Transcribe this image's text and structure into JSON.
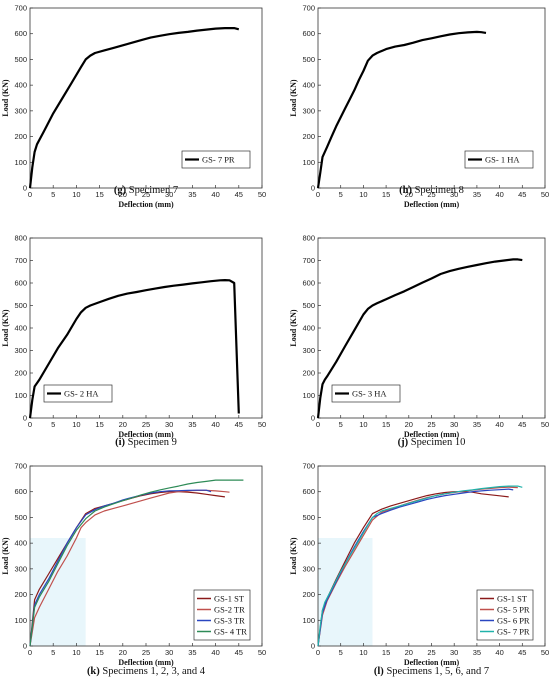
{
  "chart_data": [
    {
      "type": "line",
      "caption_letter": "(g)",
      "caption_text": " Specimen 7",
      "xlabel": "Deflection (mm)",
      "ylabel": "Load (KN)",
      "xlim": [
        0,
        50
      ],
      "ylim": [
        0,
        700
      ],
      "xticks": [
        0,
        5,
        10,
        15,
        20,
        25,
        30,
        35,
        40,
        45,
        50
      ],
      "yticks": [
        0,
        100,
        200,
        300,
        400,
        500,
        600,
        700
      ],
      "legend_position": "lower-right",
      "grid": false,
      "series": [
        {
          "name": "GS- 7 PR",
          "color": "#000000",
          "x": [
            0,
            0.5,
            1,
            1.5,
            3,
            5,
            7,
            9,
            11,
            12,
            13,
            14,
            16,
            18,
            20,
            22,
            24,
            26,
            28,
            30,
            32,
            34,
            36,
            38,
            40,
            42,
            44,
            45
          ],
          "y": [
            0,
            80,
            140,
            170,
            220,
            290,
            350,
            410,
            470,
            500,
            515,
            525,
            535,
            545,
            555,
            565,
            575,
            585,
            592,
            598,
            603,
            607,
            612,
            616,
            620,
            622,
            622,
            617
          ]
        }
      ]
    },
    {
      "type": "line",
      "caption_letter": "(h)",
      "caption_text": " Specimen 8",
      "xlabel": "Deflection (mm)",
      "ylabel": "Load (KN)",
      "xlim": [
        0,
        50
      ],
      "ylim": [
        0,
        700
      ],
      "xticks": [
        0,
        5,
        10,
        15,
        20,
        25,
        30,
        35,
        40,
        45,
        50
      ],
      "yticks": [
        0,
        100,
        200,
        300,
        400,
        500,
        600,
        700
      ],
      "legend_position": "lower-right",
      "grid": false,
      "series": [
        {
          "name": "GS- 1 HA",
          "color": "#000000",
          "x": [
            0,
            0.5,
            1,
            2,
            3,
            4,
            5,
            6,
            7,
            8,
            9,
            10,
            11,
            12,
            13,
            15,
            17,
            19,
            21,
            23,
            25,
            27,
            29,
            31,
            33,
            35,
            36,
            37
          ],
          "y": [
            0,
            60,
            120,
            160,
            200,
            240,
            275,
            310,
            345,
            380,
            420,
            455,
            495,
            515,
            525,
            540,
            550,
            556,
            565,
            575,
            582,
            590,
            597,
            602,
            605,
            607,
            606,
            603
          ]
        }
      ]
    },
    {
      "type": "line",
      "caption_letter": "(i)",
      "caption_text": " Specimen 9",
      "xlabel": "Deflection (mm)",
      "ylabel": "Load (KN)",
      "xlim": [
        0,
        50
      ],
      "ylim": [
        0,
        800
      ],
      "xticks": [
        0,
        5,
        10,
        15,
        20,
        25,
        30,
        35,
        40,
        45,
        50
      ],
      "yticks": [
        0,
        100,
        200,
        300,
        400,
        500,
        600,
        700,
        800
      ],
      "legend_position": "lower-left",
      "grid": false,
      "series": [
        {
          "name": "GS- 2 HA",
          "color": "#000000",
          "x": [
            0,
            0.5,
            1,
            2,
            4,
            6,
            8,
            10,
            11,
            12,
            13,
            15,
            17,
            19,
            21,
            23,
            25,
            27,
            29,
            31,
            33,
            35,
            37,
            39,
            41,
            42,
            43,
            44,
            45
          ],
          "y": [
            0,
            80,
            140,
            170,
            240,
            310,
            370,
            440,
            470,
            490,
            500,
            515,
            530,
            543,
            553,
            560,
            568,
            575,
            582,
            588,
            593,
            598,
            603,
            608,
            612,
            613,
            612,
            600,
            20
          ]
        }
      ]
    },
    {
      "type": "line",
      "caption_letter": "(j)",
      "caption_text": " Specimen 10",
      "xlabel": "Deflection (mm)",
      "ylabel": "Load (KN)",
      "xlim": [
        0,
        50
      ],
      "ylim": [
        0,
        800
      ],
      "xticks": [
        0,
        5,
        10,
        15,
        20,
        25,
        30,
        35,
        40,
        45,
        50
      ],
      "yticks": [
        0,
        100,
        200,
        300,
        400,
        500,
        600,
        700,
        800
      ],
      "legend_position": "lower-left",
      "grid": false,
      "series": [
        {
          "name": "GS- 3 HA",
          "color": "#000000",
          "x": [
            0,
            0.5,
            1,
            1.5,
            2,
            4,
            6,
            8,
            10,
            11,
            12,
            13,
            15,
            17,
            19,
            21,
            23,
            25,
            27,
            29,
            31,
            33,
            35,
            37,
            39,
            41,
            43,
            44,
            45
          ],
          "y": [
            0,
            90,
            150,
            170,
            185,
            250,
            320,
            390,
            460,
            485,
            500,
            510,
            528,
            546,
            563,
            582,
            602,
            620,
            640,
            653,
            663,
            672,
            680,
            688,
            695,
            700,
            705,
            705,
            702
          ]
        }
      ]
    },
    {
      "type": "line",
      "caption_letter": "(k)",
      "caption_text": " Specimens 1, 2, 3, and 4",
      "xlabel": "Deflection (mm)",
      "ylabel": "Load (KN)",
      "xlim": [
        0,
        50
      ],
      "ylim": [
        0,
        700
      ],
      "xticks": [
        0,
        5,
        10,
        15,
        20,
        25,
        30,
        35,
        40,
        45,
        50
      ],
      "yticks": [
        0,
        100,
        200,
        300,
        400,
        500,
        600,
        700
      ],
      "legend_position": "lower-right",
      "grid": false,
      "series": [
        {
          "name": "GS-1 ST",
          "color": "#8b1a1a",
          "x": [
            0,
            1,
            2,
            4,
            6,
            8,
            10,
            12,
            14,
            16,
            18,
            20,
            22,
            24,
            26,
            28,
            30,
            32,
            34,
            36,
            38,
            40,
            42
          ],
          "y": [
            0,
            180,
            220,
            280,
            340,
            400,
            460,
            515,
            535,
            545,
            555,
            565,
            575,
            585,
            592,
            597,
            600,
            600,
            598,
            595,
            590,
            585,
            580
          ]
        },
        {
          "name": "GS-2 TR",
          "color": "#c0504d",
          "x": [
            0,
            1,
            2,
            4,
            6,
            8,
            10,
            11,
            12,
            14,
            16,
            18,
            20,
            22,
            24,
            26,
            28,
            30,
            32,
            34,
            36,
            38,
            40,
            42,
            43
          ],
          "y": [
            0,
            110,
            150,
            220,
            290,
            350,
            420,
            460,
            480,
            510,
            525,
            535,
            545,
            555,
            565,
            575,
            585,
            595,
            600,
            603,
            605,
            605,
            603,
            600,
            598
          ]
        },
        {
          "name": "GS-3 TR",
          "color": "#2a46c0",
          "x": [
            0,
            1,
            2,
            4,
            6,
            8,
            10,
            12,
            14,
            16,
            18,
            20,
            22,
            24,
            26,
            28,
            30,
            32,
            34,
            36,
            38,
            39
          ],
          "y": [
            0,
            160,
            200,
            260,
            330,
            400,
            460,
            510,
            530,
            545,
            555,
            568,
            578,
            587,
            595,
            600,
            603,
            604,
            605,
            606,
            606,
            600
          ]
        },
        {
          "name": "GS- 4 TR",
          "color": "#2e8b57",
          "x": [
            0,
            1,
            2,
            4,
            6,
            8,
            10,
            12,
            14,
            16,
            18,
            20,
            22,
            24,
            26,
            28,
            30,
            32,
            34,
            36,
            38,
            40,
            42,
            44,
            46
          ],
          "y": [
            0,
            150,
            190,
            250,
            320,
            390,
            450,
            495,
            525,
            540,
            553,
            565,
            576,
            588,
            598,
            607,
            615,
            622,
            630,
            636,
            640,
            645,
            645,
            645,
            645
          ]
        }
      ]
    },
    {
      "type": "line",
      "caption_letter": "(l)",
      "caption_text": " Specimens 1, 5, 6, and 7",
      "xlabel": "Deflection (mm)",
      "ylabel": "Load (KN)",
      "xlim": [
        0,
        50
      ],
      "ylim": [
        0,
        700
      ],
      "xticks": [
        0,
        5,
        10,
        15,
        20,
        25,
        30,
        35,
        40,
        45,
        50
      ],
      "yticks": [
        0,
        100,
        200,
        300,
        400,
        500,
        600,
        700
      ],
      "legend_position": "lower-right",
      "grid": false,
      "series": [
        {
          "name": "GS-1 ST",
          "color": "#8b1a1a",
          "x": [
            0,
            1,
            2,
            4,
            6,
            8,
            10,
            12,
            14,
            16,
            18,
            20,
            22,
            24,
            26,
            28,
            30,
            32,
            34,
            36,
            38,
            40,
            42
          ],
          "y": [
            0,
            140,
            185,
            260,
            330,
            400,
            460,
            515,
            532,
            545,
            555,
            565,
            575,
            585,
            592,
            597,
            600,
            600,
            598,
            592,
            588,
            584,
            580
          ]
        },
        {
          "name": "GS- 5 PR",
          "color": "#c0504d",
          "x": [
            0,
            1,
            2,
            4,
            6,
            8,
            10,
            12,
            14,
            16,
            18,
            20,
            22,
            24,
            26,
            28,
            30,
            32,
            34,
            36,
            38,
            40,
            42,
            44
          ],
          "y": [
            0,
            120,
            175,
            245,
            310,
            370,
            430,
            490,
            520,
            532,
            545,
            556,
            567,
            577,
            585,
            592,
            597,
            602,
            606,
            610,
            613,
            616,
            618,
            616
          ]
        },
        {
          "name": "GS- 6 PR",
          "color": "#2a46c0",
          "x": [
            0,
            1,
            2,
            4,
            6,
            8,
            10,
            12,
            14,
            16,
            18,
            20,
            22,
            24,
            26,
            28,
            30,
            32,
            34,
            36,
            38,
            40,
            42,
            43
          ],
          "y": [
            0,
            130,
            180,
            250,
            320,
            385,
            445,
            500,
            515,
            528,
            540,
            550,
            560,
            570,
            578,
            585,
            590,
            595,
            600,
            603,
            606,
            608,
            610,
            607
          ]
        },
        {
          "name": "GS- 7 PR",
          "color": "#20b2aa",
          "x": [
            0,
            0.5,
            1,
            1.5,
            3,
            5,
            7,
            9,
            11,
            12,
            13,
            14,
            16,
            18,
            20,
            22,
            24,
            26,
            28,
            30,
            32,
            34,
            36,
            38,
            40,
            42,
            44,
            45
          ],
          "y": [
            0,
            80,
            140,
            170,
            220,
            290,
            350,
            410,
            470,
            500,
            515,
            525,
            535,
            545,
            555,
            565,
            575,
            585,
            592,
            598,
            603,
            607,
            612,
            616,
            620,
            622,
            622,
            617
          ]
        }
      ]
    }
  ]
}
